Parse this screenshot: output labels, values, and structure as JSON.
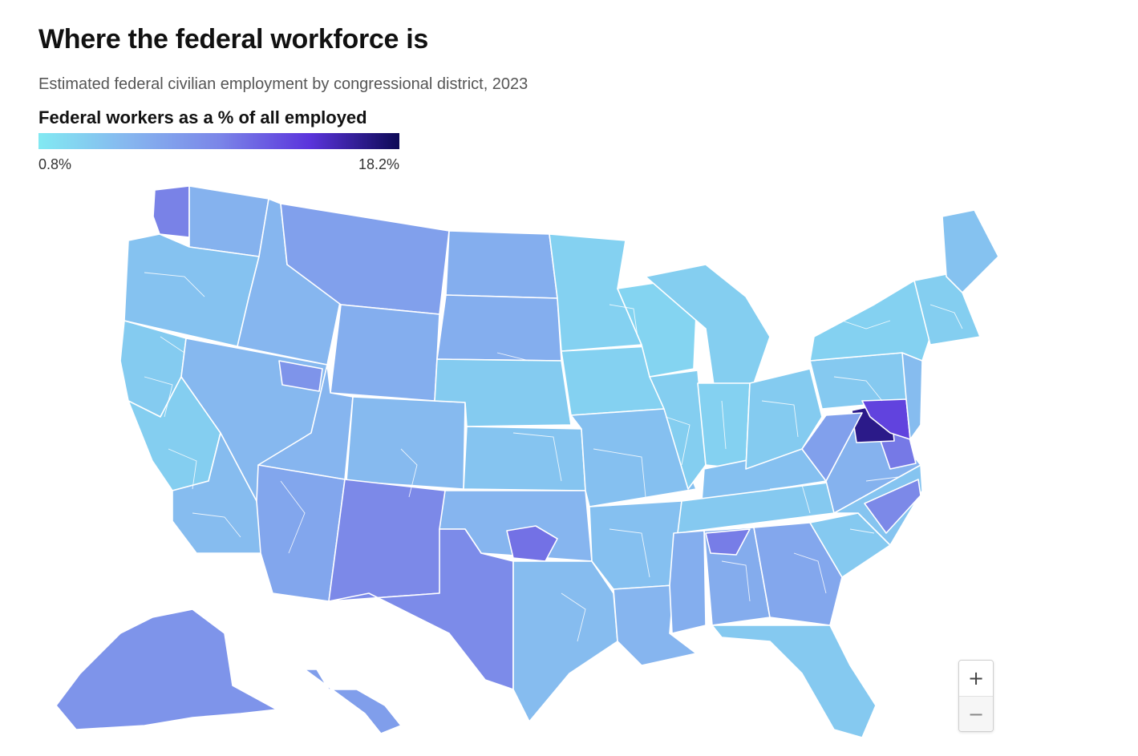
{
  "header": {
    "title": "Where the federal workforce is",
    "subtitle": "Estimated federal civilian employment by congressional district, 2023"
  },
  "legend": {
    "title": "Federal workers as a % of all employed",
    "min_label": "0.8%",
    "max_label": "18.2%",
    "min_value": 0.8,
    "max_value": 18.2,
    "colors": [
      "#82e9f2",
      "#86b6ef",
      "#7b86e8",
      "#5b34dc",
      "#0d0a55"
    ]
  },
  "zoom": {
    "in_label": "+",
    "out_label": "−"
  },
  "regions": [
    {
      "id": "wa-west",
      "value": 6.5
    },
    {
      "id": "wa-east",
      "value": 2.8
    },
    {
      "id": "or",
      "value": 1.9
    },
    {
      "id": "ca-north",
      "value": 1.5
    },
    {
      "id": "ca-central",
      "value": 1.4
    },
    {
      "id": "ca-south",
      "value": 2.2
    },
    {
      "id": "id",
      "value": 2.5
    },
    {
      "id": "nv",
      "value": 2.4
    },
    {
      "id": "mt",
      "value": 4.0
    },
    {
      "id": "wy",
      "value": 3.0
    },
    {
      "id": "ut",
      "value": 2.6
    },
    {
      "id": "ut-north",
      "value": 5.0
    },
    {
      "id": "co",
      "value": 2.3
    },
    {
      "id": "az",
      "value": 3.6
    },
    {
      "id": "nm",
      "value": 6.0
    },
    {
      "id": "nd",
      "value": 3.0
    },
    {
      "id": "sd",
      "value": 3.0
    },
    {
      "id": "ne",
      "value": 1.5
    },
    {
      "id": "ks",
      "value": 1.8
    },
    {
      "id": "ok",
      "value": 2.6
    },
    {
      "id": "ok-sw",
      "value": 7.5
    },
    {
      "id": "tx-west",
      "value": 5.8
    },
    {
      "id": "tx-east",
      "value": 2.2
    },
    {
      "id": "mn",
      "value": 1.3
    },
    {
      "id": "ia",
      "value": 1.3
    },
    {
      "id": "mo",
      "value": 2.0
    },
    {
      "id": "ar",
      "value": 2.0
    },
    {
      "id": "la",
      "value": 2.6
    },
    {
      "id": "wi",
      "value": 1.2
    },
    {
      "id": "il",
      "value": 1.4
    },
    {
      "id": "mi",
      "value": 1.4
    },
    {
      "id": "in",
      "value": 1.3
    },
    {
      "id": "ky",
      "value": 2.0
    },
    {
      "id": "tn",
      "value": 1.6
    },
    {
      "id": "ms",
      "value": 3.0
    },
    {
      "id": "al",
      "value": 3.2
    },
    {
      "id": "al-north",
      "value": 6.8
    },
    {
      "id": "ga",
      "value": 3.5
    },
    {
      "id": "fl",
      "value": 1.6
    },
    {
      "id": "sc",
      "value": 1.6
    },
    {
      "id": "nc",
      "value": 1.8
    },
    {
      "id": "nc-east",
      "value": 6.0
    },
    {
      "id": "va",
      "value": 2.8
    },
    {
      "id": "va-east",
      "value": 7.0
    },
    {
      "id": "va-north",
      "value": 15.5
    },
    {
      "id": "wv",
      "value": 4.0
    },
    {
      "id": "oh",
      "value": 1.5
    },
    {
      "id": "pa",
      "value": 1.6
    },
    {
      "id": "md",
      "value": 10.5
    },
    {
      "id": "de-nj",
      "value": 2.2
    },
    {
      "id": "ny",
      "value": 1.3
    },
    {
      "id": "new-england",
      "value": 1.4
    },
    {
      "id": "me",
      "value": 1.9
    },
    {
      "id": "ak",
      "value": 5.0
    },
    {
      "id": "hi",
      "value": 4.2
    }
  ]
}
